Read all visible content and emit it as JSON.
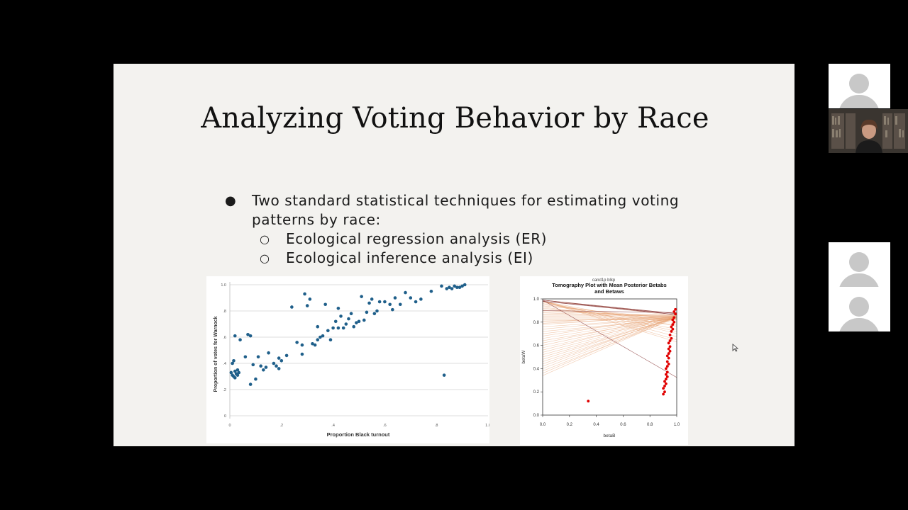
{
  "slide": {
    "title": "Analyzing Voting Behavior by Race",
    "bullets": [
      {
        "text": "Two standard statistical techniques for estimating voting patterns by race:"
      },
      {
        "text": "Ecological regression analysis (ER)"
      },
      {
        "text": "Ecological inference analysis (EI)"
      }
    ]
  },
  "colors": {
    "slide_bg": "#f3f2ef",
    "scatter_point": "#1f5f8a",
    "tomography_line": "#e6a070",
    "tomography_point": "#e00000"
  },
  "icons": [
    "user-avatar-icon",
    "pointer-cursor-icon"
  ],
  "participants": {
    "count_visible": 4
  },
  "chart_data": [
    {
      "type": "scatter",
      "title": "",
      "xlabel": "Proportion Black turnout",
      "ylabel": "Proportion of votes for Warnock",
      "xlim": [
        0,
        1.0
      ],
      "ylim": [
        0,
        1.0
      ],
      "x_ticks": [
        "0",
        ".2",
        ".4",
        ".6",
        ".8",
        "1.0"
      ],
      "y_ticks": [
        "0",
        ".2",
        ".4",
        ".6",
        ".8",
        "1.0"
      ],
      "grid": "horizontal",
      "points": [
        [
          0.005,
          0.33
        ],
        [
          0.01,
          0.31
        ],
        [
          0.015,
          0.3
        ],
        [
          0.02,
          0.29
        ],
        [
          0.02,
          0.34
        ],
        [
          0.025,
          0.32
        ],
        [
          0.03,
          0.35
        ],
        [
          0.03,
          0.31
        ],
        [
          0.035,
          0.33
        ],
        [
          0.01,
          0.4
        ],
        [
          0.015,
          0.42
        ],
        [
          0.02,
          0.61
        ],
        [
          0.04,
          0.58
        ],
        [
          0.07,
          0.62
        ],
        [
          0.08,
          0.61
        ],
        [
          0.06,
          0.45
        ],
        [
          0.08,
          0.24
        ],
        [
          0.09,
          0.39
        ],
        [
          0.1,
          0.28
        ],
        [
          0.11,
          0.45
        ],
        [
          0.12,
          0.38
        ],
        [
          0.13,
          0.35
        ],
        [
          0.14,
          0.37
        ],
        [
          0.15,
          0.48
        ],
        [
          0.17,
          0.4
        ],
        [
          0.18,
          0.38
        ],
        [
          0.19,
          0.36
        ],
        [
          0.19,
          0.44
        ],
        [
          0.2,
          0.42
        ],
        [
          0.22,
          0.46
        ],
        [
          0.24,
          0.83
        ],
        [
          0.26,
          0.56
        ],
        [
          0.28,
          0.54
        ],
        [
          0.28,
          0.47
        ],
        [
          0.29,
          0.93
        ],
        [
          0.3,
          0.84
        ],
        [
          0.31,
          0.89
        ],
        [
          0.32,
          0.55
        ],
        [
          0.33,
          0.54
        ],
        [
          0.34,
          0.58
        ],
        [
          0.34,
          0.68
        ],
        [
          0.35,
          0.6
        ],
        [
          0.36,
          0.61
        ],
        [
          0.37,
          0.85
        ],
        [
          0.38,
          0.65
        ],
        [
          0.39,
          0.58
        ],
        [
          0.4,
          0.67
        ],
        [
          0.41,
          0.72
        ],
        [
          0.42,
          0.82
        ],
        [
          0.42,
          0.67
        ],
        [
          0.43,
          0.76
        ],
        [
          0.44,
          0.67
        ],
        [
          0.45,
          0.7
        ],
        [
          0.46,
          0.74
        ],
        [
          0.47,
          0.78
        ],
        [
          0.48,
          0.68
        ],
        [
          0.49,
          0.71
        ],
        [
          0.5,
          0.72
        ],
        [
          0.51,
          0.91
        ],
        [
          0.52,
          0.73
        ],
        [
          0.53,
          0.79
        ],
        [
          0.54,
          0.86
        ],
        [
          0.55,
          0.89
        ],
        [
          0.56,
          0.78
        ],
        [
          0.57,
          0.8
        ],
        [
          0.58,
          0.87
        ],
        [
          0.6,
          0.87
        ],
        [
          0.62,
          0.85
        ],
        [
          0.63,
          0.81
        ],
        [
          0.64,
          0.9
        ],
        [
          0.66,
          0.85
        ],
        [
          0.68,
          0.94
        ],
        [
          0.7,
          0.9
        ],
        [
          0.72,
          0.87
        ],
        [
          0.74,
          0.89
        ],
        [
          0.78,
          0.95
        ],
        [
          0.82,
          0.99
        ],
        [
          0.83,
          0.31
        ],
        [
          0.84,
          0.97
        ],
        [
          0.85,
          0.98
        ],
        [
          0.86,
          0.97
        ],
        [
          0.87,
          0.99
        ],
        [
          0.88,
          0.98
        ],
        [
          0.89,
          0.98
        ],
        [
          0.9,
          0.99
        ],
        [
          0.91,
          1.0
        ]
      ]
    },
    {
      "type": "line",
      "title": "Tomography Plot with Mean Posterior Betabs and Betaws",
      "subtitle": "cand1p blkp",
      "xlabel": "betaB",
      "ylabel": "betaW",
      "xlim": [
        0,
        1.0
      ],
      "ylim": [
        0,
        1.0
      ],
      "x_ticks": [
        "0.0",
        "0.2",
        "0.4",
        "0.6",
        "0.8",
        "1.0"
      ],
      "y_ticks": [
        "0.0",
        "0.2",
        "0.4",
        "0.6",
        "0.8",
        "1.0"
      ],
      "lines": [
        [
          0.88,
          0.98,
          0.3,
          0.7
        ],
        [
          0.78,
          0.98,
          0.32,
          0.75
        ],
        [
          0.7,
          0.98,
          0.35,
          0.72
        ],
        [
          0.6,
          0.98,
          0.38,
          0.8
        ],
        [
          0.52,
          0.98,
          0.4,
          0.78
        ],
        [
          0.45,
          0.98,
          0.42,
          0.85
        ],
        [
          0.4,
          0.97,
          0.45,
          0.82
        ],
        [
          0.55,
          0.96,
          0.22,
          0.88
        ],
        [
          0.62,
          0.95,
          0.25,
          0.9
        ],
        [
          0.66,
          0.94,
          0.28,
          0.92
        ],
        [
          0.5,
          0.93,
          0.3,
          0.86
        ],
        [
          0.48,
          0.92,
          0.27,
          0.91
        ],
        [
          0.58,
          0.91,
          0.33,
          0.93
        ],
        [
          0.42,
          0.9,
          0.36,
          0.94
        ],
        [
          0.47,
          0.89,
          0.34,
          0.95
        ],
        [
          0.56,
          0.88,
          0.24,
          0.94
        ],
        [
          0.52,
          0.87,
          0.29,
          0.96
        ],
        [
          0.44,
          0.86,
          0.37,
          0.95
        ],
        [
          0.4,
          0.85,
          0.31,
          0.93
        ],
        [
          0.35,
          0.84,
          0.26,
          0.94
        ],
        [
          0.46,
          0.83,
          0.23,
          0.92
        ],
        [
          0.38,
          0.82,
          0.3,
          0.91
        ],
        [
          0.33,
          0.81,
          0.25,
          0.93
        ],
        [
          0.36,
          0.8,
          0.28,
          0.95
        ],
        [
          0.3,
          0.79,
          0.27,
          0.94
        ],
        [
          0.32,
          0.78,
          0.21,
          0.95
        ],
        [
          0.28,
          0.76,
          0.26,
          0.93
        ],
        [
          0.27,
          0.74,
          0.22,
          0.94
        ],
        [
          0.26,
          0.72,
          0.24,
          0.92
        ],
        [
          0.25,
          0.7,
          0.23,
          0.93
        ],
        [
          0.22,
          0.68,
          0.2,
          0.95
        ],
        [
          0.24,
          0.66,
          0.25,
          0.94
        ],
        [
          0.21,
          0.64,
          0.22,
          0.93
        ],
        [
          0.2,
          0.62,
          0.24,
          0.95
        ],
        [
          0.18,
          0.6,
          0.21,
          0.94
        ],
        [
          0.17,
          0.58,
          0.23,
          0.93
        ],
        [
          0.16,
          0.56,
          0.2,
          0.95
        ],
        [
          0.15,
          0.54,
          0.22,
          0.94
        ],
        [
          0.14,
          0.52,
          0.21,
          0.93
        ],
        [
          0.3,
          0.5,
          0.3,
          0.93
        ],
        [
          0.28,
          0.48,
          0.28,
          0.94
        ],
        [
          0.26,
          0.46,
          0.26,
          0.93
        ],
        [
          0.25,
          0.44,
          0.25,
          0.94
        ],
        [
          0.24,
          0.42,
          0.24,
          0.95
        ],
        [
          0.23,
          0.4,
          0.23,
          0.94
        ],
        [
          0.22,
          0.38,
          0.22,
          0.93
        ],
        [
          0.2,
          0.36,
          0.2,
          0.95
        ],
        [
          0.18,
          0.34,
          0.19,
          0.94
        ],
        [
          0.99,
          0.99,
          0.7,
          0.95
        ],
        [
          0.95,
          0.99,
          0.72,
          0.97
        ],
        [
          0.9,
          0.99,
          0.75,
          0.96
        ],
        [
          0.85,
          0.99,
          0.8,
          0.97
        ],
        [
          1.0,
          0.9,
          0.78,
          0.98
        ],
        [
          0.8,
          0.99,
          0.1,
          0.36
        ],
        [
          0.98,
          0.98,
          0.6,
          0.96
        ],
        [
          0.92,
          0.98,
          0.65,
          0.97
        ]
      ],
      "points": [
        [
          0.34,
          0.12
        ],
        [
          0.9,
          0.18
        ],
        [
          0.91,
          0.2
        ],
        [
          0.9,
          0.23
        ],
        [
          0.91,
          0.25
        ],
        [
          0.92,
          0.27
        ],
        [
          0.91,
          0.29
        ],
        [
          0.92,
          0.31
        ],
        [
          0.93,
          0.33
        ],
        [
          0.92,
          0.35
        ],
        [
          0.93,
          0.37
        ],
        [
          0.92,
          0.4
        ],
        [
          0.93,
          0.42
        ],
        [
          0.94,
          0.44
        ],
        [
          0.93,
          0.46
        ],
        [
          0.94,
          0.49
        ],
        [
          0.93,
          0.51
        ],
        [
          0.94,
          0.53
        ],
        [
          0.95,
          0.55
        ],
        [
          0.94,
          0.57
        ],
        [
          0.95,
          0.59
        ],
        [
          0.94,
          0.62
        ],
        [
          0.95,
          0.64
        ],
        [
          0.96,
          0.66
        ],
        [
          0.95,
          0.69
        ],
        [
          0.96,
          0.72
        ],
        [
          0.97,
          0.74
        ],
        [
          0.96,
          0.76
        ],
        [
          0.97,
          0.78
        ],
        [
          0.98,
          0.8
        ],
        [
          0.97,
          0.82
        ],
        [
          0.98,
          0.84
        ],
        [
          0.99,
          0.87
        ],
        [
          0.98,
          0.89
        ],
        [
          0.99,
          0.91
        ]
      ]
    }
  ]
}
